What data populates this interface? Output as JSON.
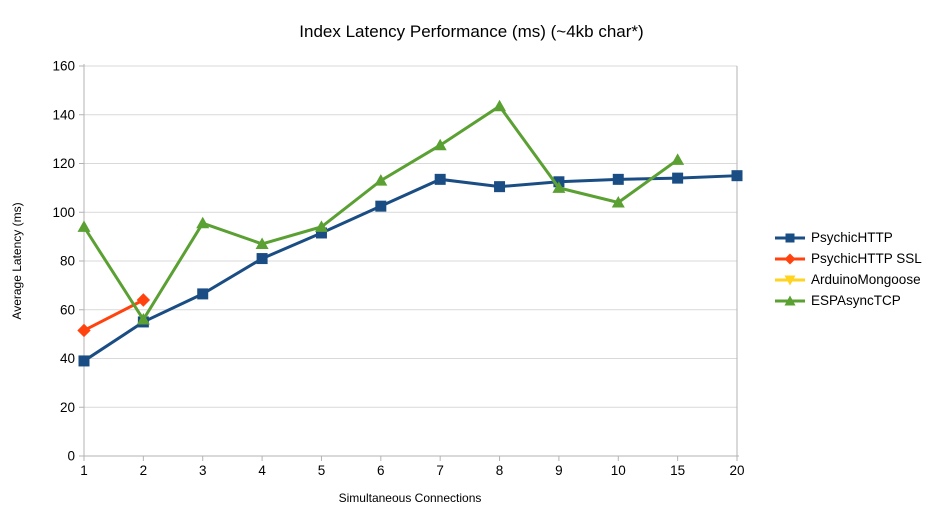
{
  "chart_data": {
    "type": "line",
    "title": "Index Latency Performance (ms) (~4kb char*)",
    "xlabel": "Simultaneous Connections",
    "ylabel": "Average Latency (ms)",
    "categories": [
      "1",
      "2",
      "3",
      "4",
      "5",
      "6",
      "7",
      "8",
      "9",
      "10",
      "15",
      "20"
    ],
    "ylim": [
      0,
      160
    ],
    "ytick_step": 20,
    "grid": true,
    "legend_position": "right",
    "colors": {
      "grid": "#D9D9D9",
      "axis": "#B3B3B3",
      "text": "#000000",
      "background": "#FFFFFF"
    },
    "series": [
      {
        "name": "PsychicHTTP",
        "color": "#1A4D83",
        "marker": "square",
        "values": [
          39,
          55,
          66.5,
          81,
          91.5,
          102.5,
          113.5,
          110.5,
          112.5,
          113.5,
          114,
          115
        ]
      },
      {
        "name": "PsychicHTTP SSL",
        "color": "#FF420E",
        "marker": "diamond",
        "values": [
          51.5,
          64,
          null,
          null,
          null,
          null,
          null,
          null,
          null,
          null,
          null,
          null
        ]
      },
      {
        "name": "ArduinoMongoose",
        "color": "#FFD320",
        "marker": "triangle-down",
        "values": [
          null,
          null,
          null,
          null,
          null,
          null,
          null,
          null,
          null,
          null,
          null,
          null
        ]
      },
      {
        "name": "ESPAsyncTCP",
        "color": "#5AA032",
        "marker": "triangle-up",
        "values": [
          94,
          56,
          95.5,
          87,
          94,
          113,
          127.5,
          143.5,
          110,
          104,
          121.5,
          null
        ]
      }
    ]
  }
}
